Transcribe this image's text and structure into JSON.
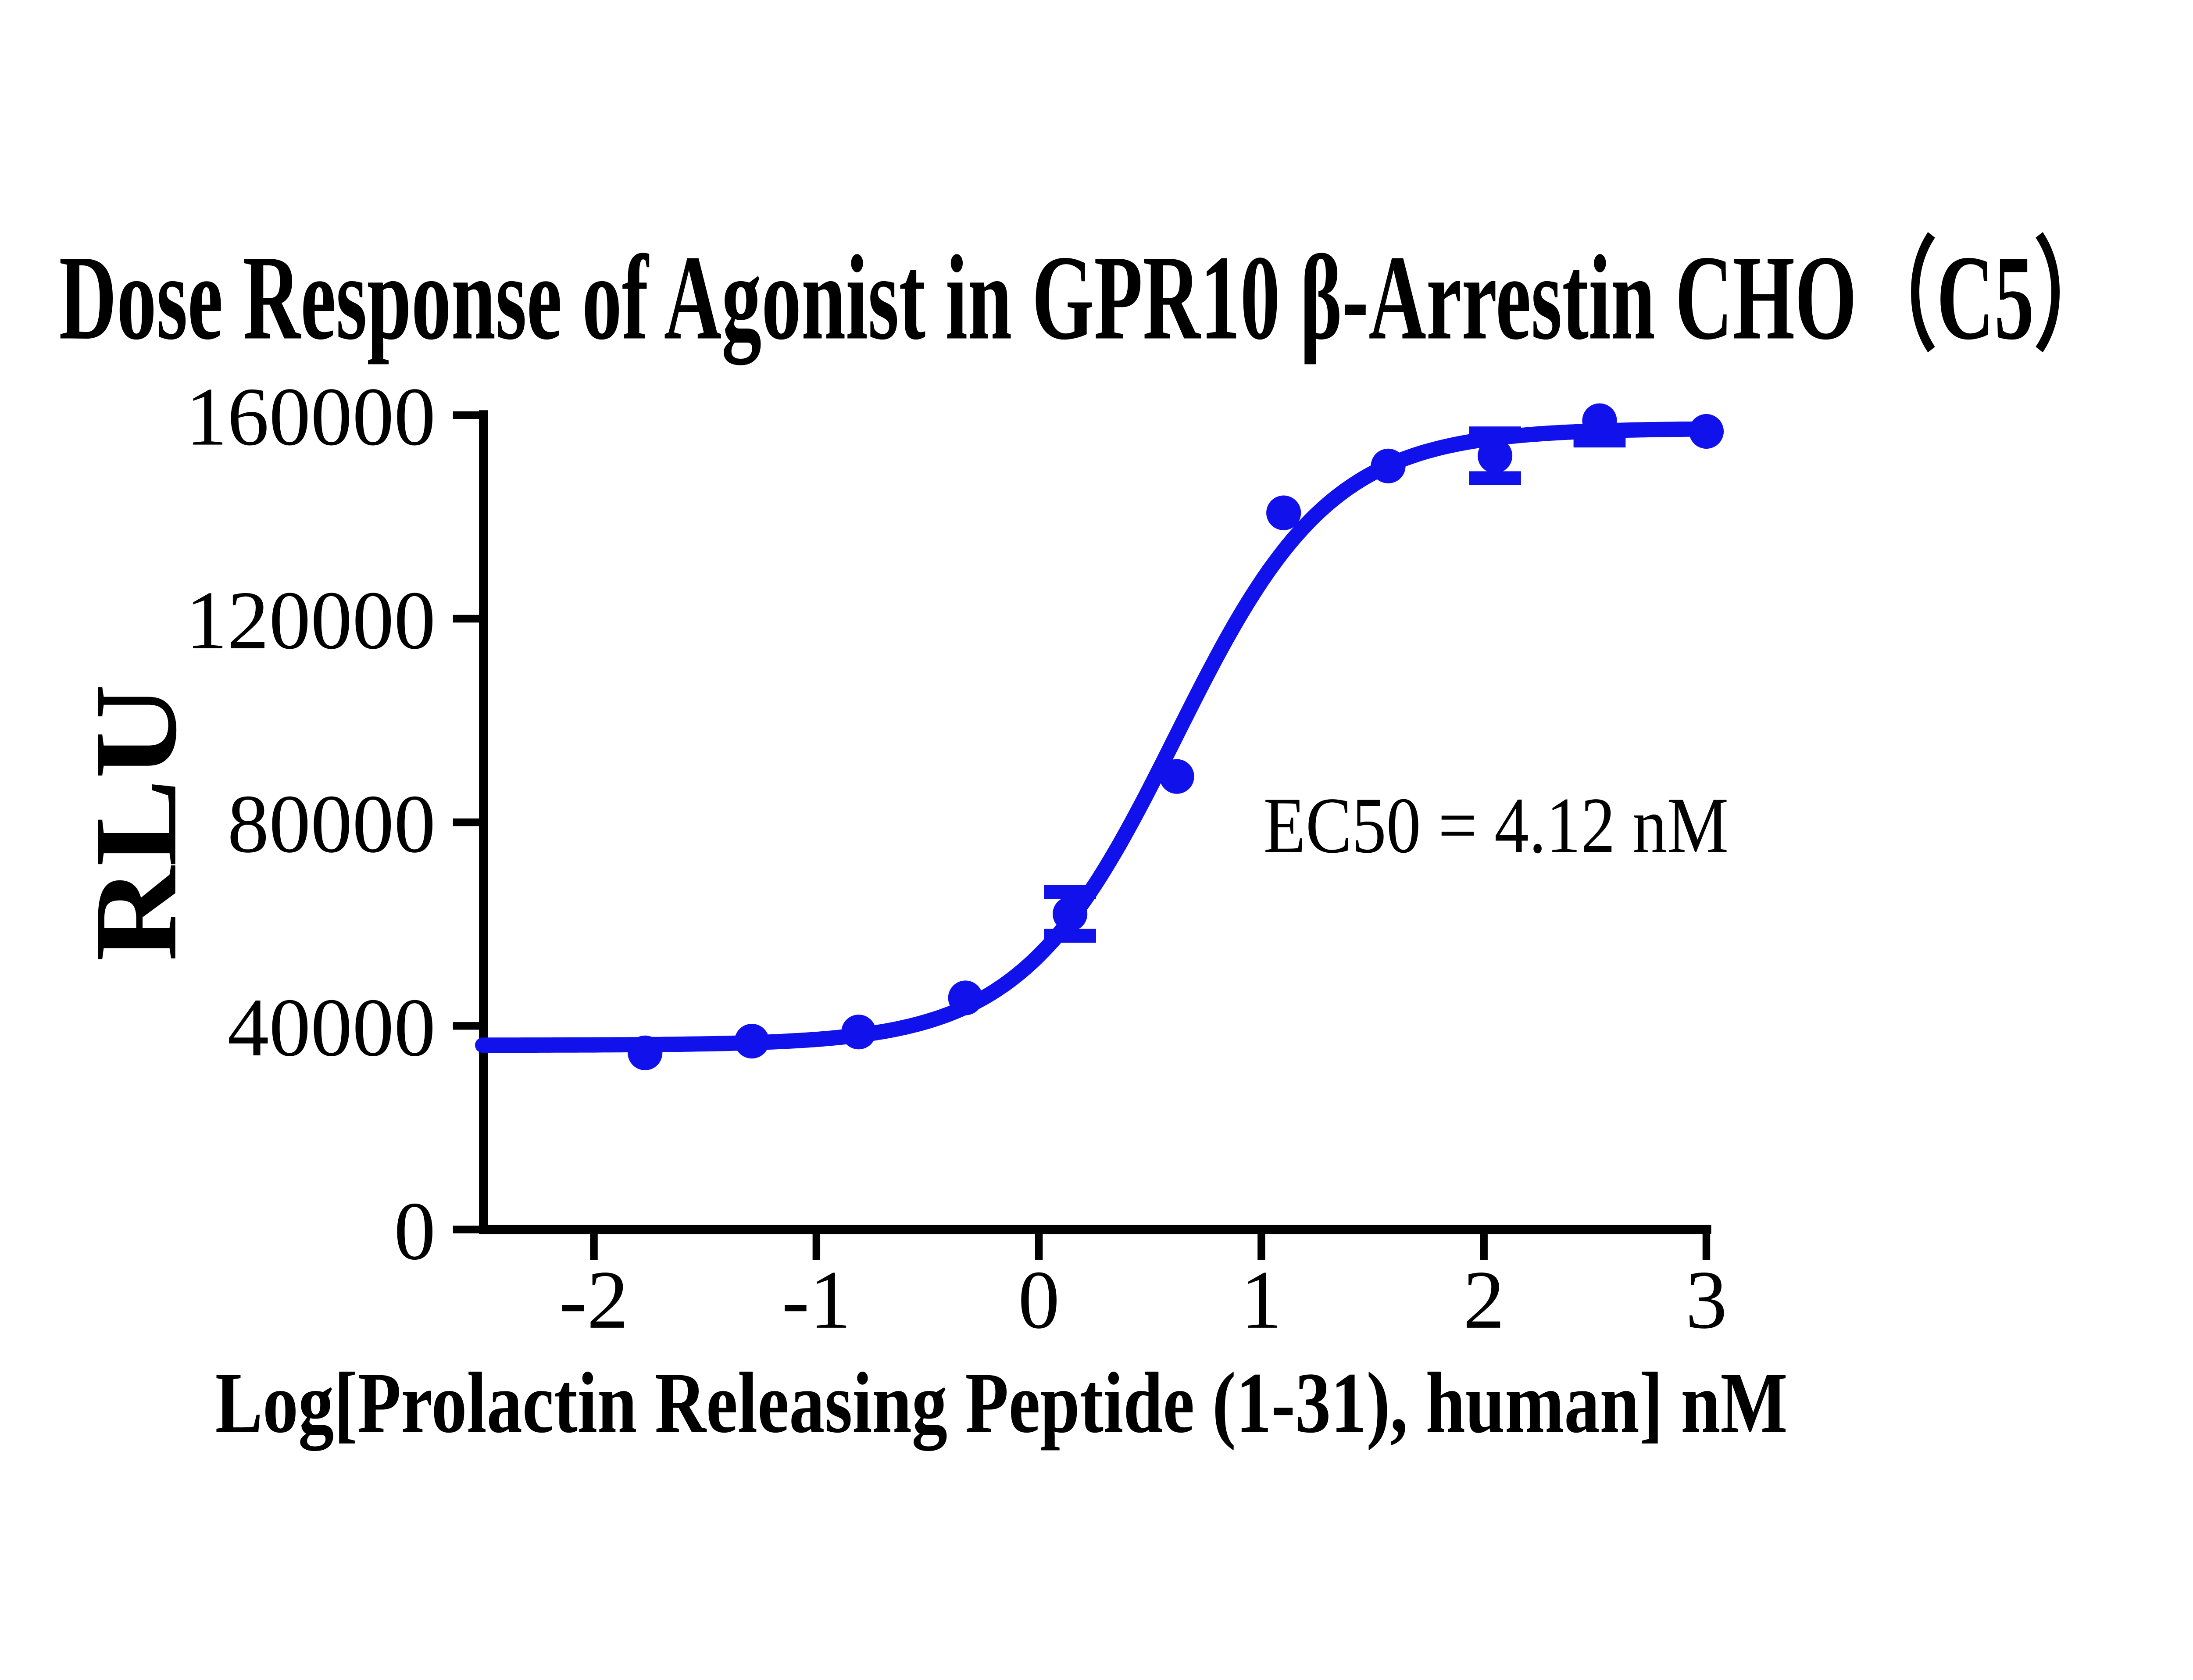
{
  "chart_data": {
    "type": "scatter",
    "subtype": "dose-response line+scatter",
    "title": "Dose Response of Agonist in GPR10 β-Arrestin CHO（C5）",
    "xlabel": "Log[Prolactin Releasing Peptide (1-31), human] nM",
    "ylabel": "RLU",
    "annotation": "EC50 = 4.12 nM",
    "ec50_nM": 4.12,
    "color": "#1111EB",
    "axis_color": "#000000",
    "background_color": "#FFFFFF",
    "grid": false,
    "legend_position": "none",
    "xlim": [
      -2.5,
      3.05
    ],
    "ylim": [
      0,
      160000
    ],
    "x_ticks": [
      -2,
      -1,
      0,
      1,
      2,
      3
    ],
    "x_tick_labels": [
      "-2",
      "-1",
      "0",
      "1",
      "2",
      "3"
    ],
    "y_ticks": [
      0,
      40000,
      80000,
      120000,
      160000
    ],
    "y_tick_labels": [
      "0",
      "40000",
      "80000",
      "120000",
      "160000"
    ],
    "series": [
      {
        "name": "Prolactin Releasing Peptide (1-31), human",
        "marker": "filled-circle",
        "x": [
          -1.77,
          -1.29,
          -0.81,
          -0.33,
          0.14,
          0.62,
          1.1,
          1.57,
          2.05,
          2.52,
          3.0
        ],
        "y": [
          34700,
          37000,
          38800,
          45500,
          62000,
          89000,
          140800,
          150000,
          152000,
          158900,
          156800
        ],
        "err_plus": [
          0,
          0,
          0,
          0,
          4300,
          0,
          0,
          0,
          4400,
          0,
          0
        ],
        "err_minus": [
          0,
          0,
          0,
          0,
          4300,
          0,
          0,
          0,
          4400,
          3900,
          0
        ]
      }
    ],
    "fit_curve": {
      "model": "4-parameter logistic",
      "bottom": 36200,
      "top": 157400,
      "log_ec50": 0.615,
      "hill_slope": 1.25,
      "x_start": -2.5,
      "x_end": 3.0
    }
  }
}
